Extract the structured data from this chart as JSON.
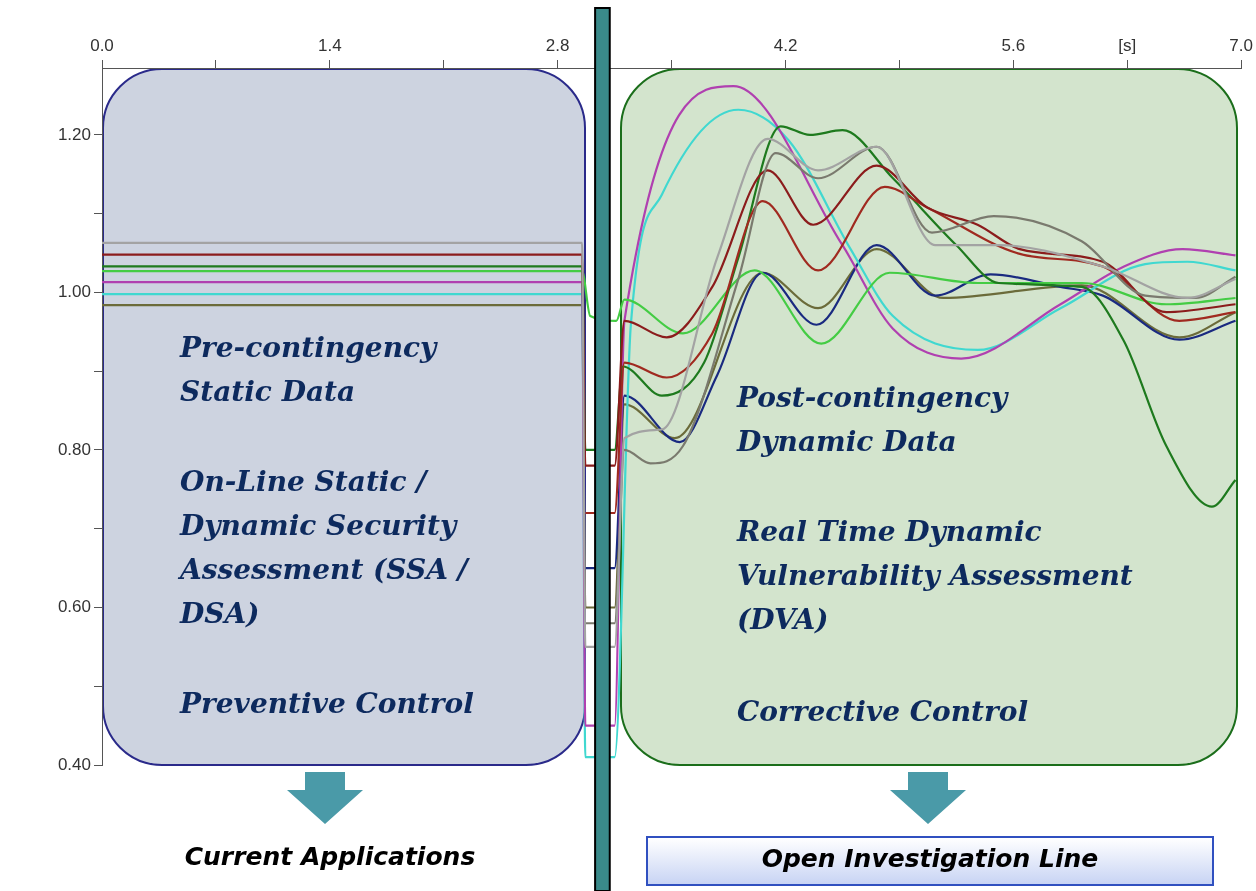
{
  "chart_data": {
    "type": "line",
    "annotations": [
      "Pre-contingency Static Data",
      "On-Line  Static / Dynamic Security Assessment (SSA / DSA)",
      "Preventive Control",
      "Post-contingency Dynamic Data",
      "Real Time Dynamic Vulnerability Assessment (DVA)",
      "Corrective Control",
      "Current Applications",
      "Open Investigation Line"
    ],
    "xlim": [
      0,
      7.0
    ],
    "xticks": [
      {
        "value": 0,
        "label": "0.0"
      },
      {
        "value": 0.7,
        "label": null
      },
      {
        "value": 1.4,
        "label": "1.4"
      },
      {
        "value": 2.1,
        "label": null
      },
      {
        "value": 2.8,
        "label": "2.8"
      },
      {
        "value": 3.5,
        "label": null
      },
      {
        "value": 4.2,
        "label": "4.2"
      },
      {
        "value": 4.9,
        "label": null
      },
      {
        "value": 5.6,
        "label": "5.6"
      },
      {
        "value": 6.3,
        "label": "[s]"
      },
      {
        "value": 7.0,
        "label": "7.0"
      }
    ],
    "ylim": [
      0.4,
      1.285
    ],
    "yticks": [
      {
        "value": 0.4,
        "label": "0.40"
      },
      {
        "value": 0.5,
        "label": null
      },
      {
        "value": 0.6,
        "label": "0.60"
      },
      {
        "value": 0.7,
        "label": null
      },
      {
        "value": 0.8,
        "label": "0.80"
      },
      {
        "value": 0.9,
        "label": null
      },
      {
        "value": 1.0,
        "label": "1.00"
      },
      {
        "value": 1.1,
        "label": null
      },
      {
        "value": 1.2,
        "label": "1.20"
      }
    ],
    "bands": [
      {
        "axis": "x",
        "from": 3.03,
        "to": 3.12,
        "color": "#3a8a8a"
      }
    ],
    "grid": false,
    "legend": false,
    "marker": "none",
    "line_style": "solid",
    "series": [
      {
        "color": "#a3a3a3",
        "x": [
          0,
          2.95,
          2.97,
          3.15,
          3.21,
          3.44,
          3.78,
          4.09,
          4.4,
          4.76,
          5.12,
          5.51,
          6.15,
          6.67,
          6.965
        ],
        "values": [
          1.063,
          1.063,
          0.55,
          0.55,
          0.815,
          0.826,
          1.044,
          1.195,
          1.155,
          1.185,
          1.06,
          1.06,
          1.033,
          0.993,
          1.017
        ]
      },
      {
        "color": "#7a7a6e",
        "x": [
          2.97,
          3.15,
          3.21,
          3.37,
          3.57,
          3.91,
          4.14,
          4.4,
          4.76,
          5.1,
          5.48,
          6.02,
          6.41,
          6.72,
          6.965
        ],
        "values": [
          0.58,
          0.58,
          0.8,
          0.783,
          0.805,
          1.017,
          1.177,
          1.145,
          1.185,
          1.076,
          1.097,
          1.065,
          0.996,
          0.993,
          1.02
        ]
      },
      {
        "color": "#8b1c1c",
        "x": [
          0,
          2.95,
          2.97,
          3.15,
          3.21,
          3.47,
          3.75,
          4.09,
          4.37,
          4.76,
          5.07,
          5.38,
          5.64,
          6.15,
          6.54,
          6.965
        ],
        "values": [
          1.048,
          1.048,
          0.78,
          0.78,
          0.964,
          0.943,
          1.007,
          1.155,
          1.086,
          1.161,
          1.108,
          1.086,
          1.055,
          1.039,
          0.975,
          0.985
        ]
      },
      {
        "color": "#a02a20",
        "x": [
          2.97,
          3.15,
          3.21,
          3.47,
          3.75,
          4.06,
          4.4,
          4.81,
          5.07,
          5.64,
          6.15,
          6.62,
          6.965
        ],
        "values": [
          0.72,
          0.72,
          0.911,
          0.892,
          0.948,
          1.116,
          1.028,
          1.134,
          1.108,
          1.049,
          1.033,
          0.964,
          0.975
        ]
      },
      {
        "color": "#1e7a1e",
        "x": [
          0,
          2.95,
          2.97,
          3.15,
          3.2,
          3.44,
          3.7,
          3.91,
          4.17,
          4.35,
          4.55,
          4.86,
          5.25,
          5.51,
          6.02,
          6.28,
          6.54,
          6.82,
          6.965
        ],
        "values": [
          1.033,
          1.033,
          0.8,
          0.8,
          0.906,
          0.869,
          0.911,
          1.044,
          1.211,
          1.2,
          1.206,
          1.145,
          1.06,
          1.012,
          1.007,
          0.938,
          0.805,
          0.728,
          0.762
        ]
      },
      {
        "color": "#44cc44",
        "x": [
          0,
          2.95,
          3.0,
          3.16,
          3.21,
          3.57,
          4.01,
          4.42,
          4.84,
          5.38,
          6.02,
          6.54,
          6.965
        ],
        "values": [
          1.027,
          1.027,
          0.97,
          0.964,
          0.991,
          0.948,
          1.028,
          0.935,
          1.025,
          1.012,
          1.012,
          0.985,
          0.993
        ]
      },
      {
        "color": "#b040b0",
        "x": [
          0,
          2.95,
          2.97,
          3.15,
          3.21,
          3.88,
          4.55,
          4.86,
          5.28,
          5.89,
          6.28,
          6.64,
          6.965
        ],
        "values": [
          1.013,
          1.013,
          0.45,
          0.45,
          0.964,
          1.262,
          1.06,
          0.954,
          0.916,
          0.985,
          1.033,
          1.055,
          1.047
        ]
      },
      {
        "color": "#40d8d0",
        "x": [
          0,
          2.95,
          2.97,
          3.15,
          3.25,
          3.44,
          3.91,
          4.22,
          4.6,
          4.86,
          5.38,
          5.89,
          6.41,
          6.67,
          6.965
        ],
        "values": [
          0.998,
          0.998,
          0.41,
          0.41,
          0.96,
          1.124,
          1.232,
          1.193,
          1.055,
          0.97,
          0.927,
          0.98,
          1.036,
          1.039,
          1.028
        ]
      },
      {
        "color": "#1a2a80",
        "x": [
          2.97,
          3.15,
          3.21,
          3.55,
          3.78,
          4.06,
          4.39,
          4.76,
          5.12,
          5.46,
          5.89,
          6.15,
          6.62,
          6.965
        ],
        "values": [
          0.65,
          0.65,
          0.869,
          0.81,
          0.895,
          1.025,
          0.959,
          1.06,
          0.996,
          1.023,
          1.007,
          0.996,
          0.94,
          0.964
        ]
      },
      {
        "color": "#6b6b3a",
        "x": [
          0,
          2.95,
          2.97,
          3.15,
          3.21,
          3.52,
          4.06,
          4.4,
          4.76,
          5.17,
          6.02,
          6.62,
          6.965
        ],
        "values": [
          0.984,
          0.984,
          0.6,
          0.6,
          0.858,
          0.815,
          1.025,
          0.98,
          1.055,
          0.993,
          1.009,
          0.943,
          0.975
        ]
      }
    ]
  }
}
